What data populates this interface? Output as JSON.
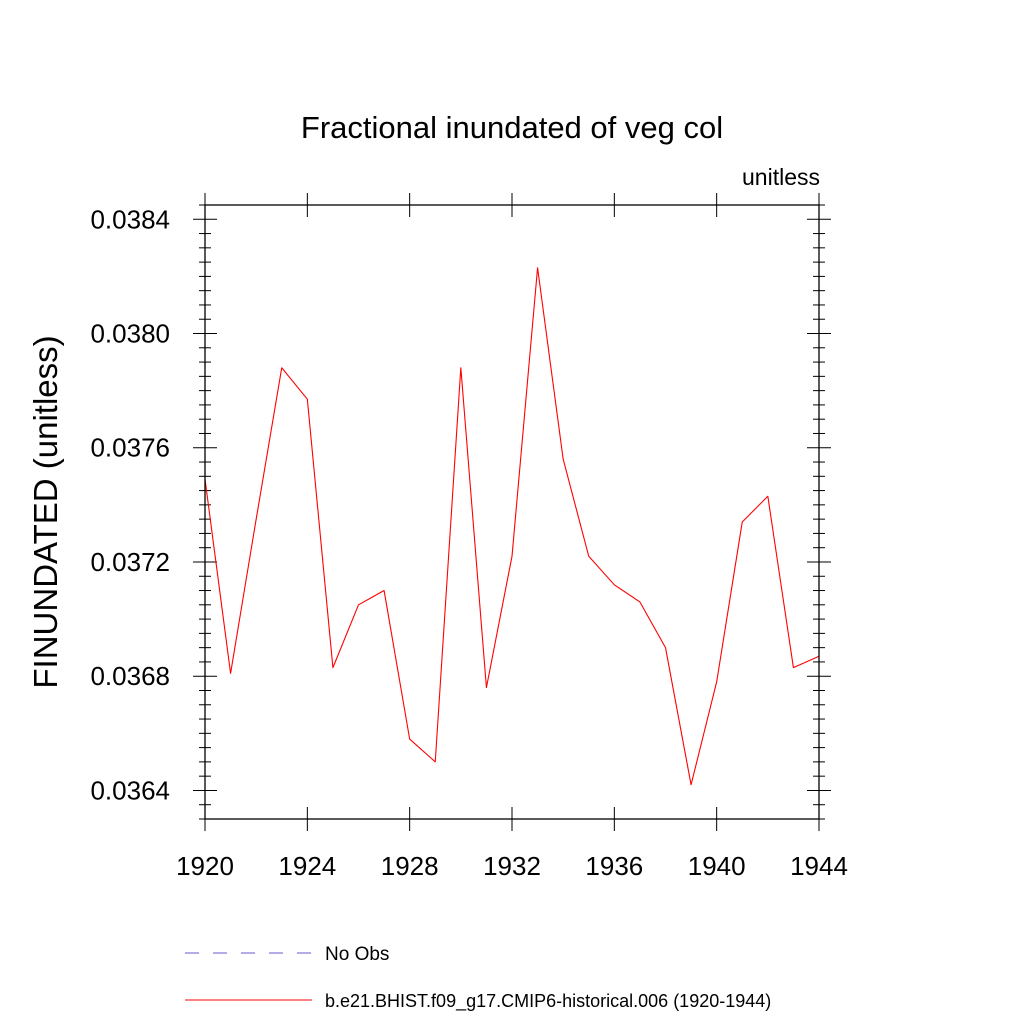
{
  "chart_data": {
    "type": "line",
    "title": "Fractional inundated of veg col",
    "units_label": "unitless",
    "ylabel": "FINUNDATED  (unitless)",
    "xlabel": "",
    "xlim": [
      1920,
      1944
    ],
    "ylim": [
      0.0363,
      0.03845
    ],
    "x_ticks": [
      1920,
      1924,
      1928,
      1932,
      1936,
      1940,
      1944
    ],
    "x_tick_labels": [
      "1920",
      "1924",
      "1928",
      "1932",
      "1936",
      "1940",
      "1944"
    ],
    "y_ticks": [
      0.0364,
      0.0368,
      0.0372,
      0.0376,
      0.038,
      0.0384
    ],
    "y_tick_labels": [
      "0.0364",
      "0.0368",
      "0.0372",
      "0.0376",
      "0.0380",
      "0.0384"
    ],
    "series": [
      {
        "name": "b.e21.BHIST.f09_g17.CMIP6-historical.006 (1920-1944)",
        "color": "#ff0000",
        "x": [
          1920,
          1921,
          1922,
          1923,
          1924,
          1925,
          1926,
          1927,
          1928,
          1929,
          1930,
          1931,
          1932,
          1933,
          1934,
          1935,
          1936,
          1937,
          1938,
          1939,
          1940,
          1941,
          1942,
          1943,
          1944
        ],
        "values": [
          0.03749,
          0.03681,
          0.03735,
          0.03788,
          0.03777,
          0.03683,
          0.03705,
          0.0371,
          0.03658,
          0.0365,
          0.03788,
          0.03676,
          0.03722,
          0.03823,
          0.03756,
          0.03722,
          0.03712,
          0.03706,
          0.0369,
          0.03642,
          0.03678,
          0.03734,
          0.03743,
          0.03683,
          0.03687
        ]
      }
    ],
    "legend": [
      {
        "label": "No Obs",
        "color": "#6a5acd",
        "style": "dashed"
      },
      {
        "label": "b.e21.BHIST.f09_g17.CMIP6-historical.006 (1920-1944)",
        "color": "#ff0000",
        "style": "solid"
      }
    ]
  }
}
